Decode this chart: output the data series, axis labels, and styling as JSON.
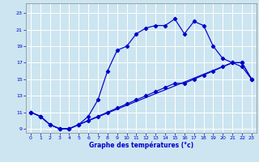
{
  "xlabel": "Graphe des températures (°c)",
  "bg_color": "#cce5f0",
  "grid_color": "#ffffff",
  "line_color": "#0000cc",
  "xlim": [
    -0.5,
    23.5
  ],
  "ylim": [
    8.5,
    24.2
  ],
  "xticks": [
    0,
    1,
    2,
    3,
    4,
    5,
    6,
    7,
    8,
    9,
    10,
    11,
    12,
    13,
    14,
    15,
    16,
    17,
    18,
    19,
    20,
    21,
    22,
    23
  ],
  "yticks": [
    9,
    11,
    13,
    15,
    17,
    19,
    21,
    23
  ],
  "line1_x": [
    0,
    1,
    2,
    3,
    4,
    5,
    6,
    7,
    8,
    9,
    10,
    11,
    12,
    13,
    14,
    15,
    16,
    17,
    18,
    19,
    20,
    21,
    22,
    23
  ],
  "line1_y": [
    11,
    10.5,
    9.5,
    9,
    9,
    9.5,
    10.5,
    12.5,
    16,
    18.5,
    19,
    20.5,
    21.2,
    21.5,
    21.5,
    22.3,
    20.5,
    22,
    21.5,
    19,
    17.5,
    17,
    16.5,
    15
  ],
  "line2_x": [
    0,
    1,
    2,
    3,
    4,
    5,
    6,
    7,
    8,
    9,
    10,
    11,
    12,
    13,
    14,
    15,
    16,
    17,
    18,
    19,
    20,
    21,
    22,
    23
  ],
  "line2_y": [
    11,
    10.5,
    9.5,
    9,
    9,
    9.5,
    10,
    10.5,
    11,
    11.5,
    12,
    12.5,
    13,
    13.5,
    14,
    14.5,
    14.5,
    15,
    15.5,
    16,
    16.5,
    17,
    17,
    15
  ],
  "line3_x": [
    0,
    1,
    2,
    3,
    4,
    5,
    21,
    22,
    23
  ],
  "line3_y": [
    11,
    10.5,
    9.5,
    9,
    9,
    9.5,
    17,
    17,
    15
  ]
}
